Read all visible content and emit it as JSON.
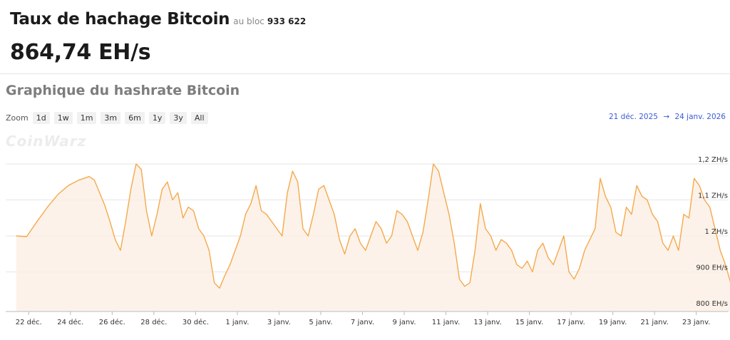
{
  "header": {
    "title": "Taux de hachage Bitcoin",
    "block_prefix": "au bloc",
    "block_number": "933 622",
    "rate": "864,74 EH/s"
  },
  "chart_title": "Graphique du hashrate Bitcoin",
  "zoom": {
    "label": "Zoom",
    "buttons": [
      "1d",
      "1w",
      "1m",
      "3m",
      "6m",
      "1y",
      "3y",
      "All"
    ]
  },
  "range": {
    "from": "21 déc. 2025",
    "arrow": "→",
    "to": "24 janv. 2026"
  },
  "watermark": "CoinWarz",
  "colors": {
    "line": "#f5a94c",
    "area": "#fbefe3",
    "range_text": "#3b5bd6"
  },
  "chart_data": {
    "type": "area",
    "y_unit": "EH/s",
    "ylim": [
      800,
      1200
    ],
    "y_ticks": [
      800,
      900,
      1000,
      1100,
      1200
    ],
    "y_tick_labels": [
      "800 EH/s",
      "900 EH/s",
      "1 ZH/s",
      "1,1 ZH/s",
      "1,2 ZH/s"
    ],
    "x_tick_labels": [
      "22 déc.",
      "24 déc.",
      "26 déc.",
      "28 déc.",
      "30 déc.",
      "1 janv.",
      "3 janv.",
      "5 janv.",
      "7 janv.",
      "9 janv.",
      "11 janv.",
      "13 janv.",
      "15 janv.",
      "17 janv.",
      "19 janv.",
      "21 janv.",
      "23 janv."
    ],
    "x_start": "2025-12-21",
    "x_end": "2026-01-24",
    "series": [
      {
        "x": [
          "2025-12-21 12:00",
          "2025-12-22 00:00",
          "2025-12-22 12:00",
          "2025-12-23 00:00",
          "2025-12-23 12:00",
          "2025-12-24 00:00",
          "2025-12-24 12:00",
          "2025-12-25 00:00",
          "2025-12-25 06:00",
          "2025-12-25 12:00",
          "2025-12-25 18:00",
          "2025-12-26 00:00",
          "2025-12-26 06:00",
          "2025-12-26 12:00",
          "2025-12-26 18:00",
          "2025-12-27 00:00",
          "2025-12-27 06:00",
          "2025-12-27 12:00",
          "2025-12-27 18:00",
          "2025-12-28 00:00",
          "2025-12-28 06:00",
          "2025-12-28 12:00",
          "2025-12-28 18:00",
          "2025-12-29 00:00",
          "2025-12-29 06:00",
          "2025-12-29 12:00",
          "2025-12-29 18:00",
          "2025-12-30 00:00",
          "2025-12-30 06:00",
          "2025-12-30 12:00",
          "2025-12-30 18:00",
          "2025-12-31 00:00",
          "2025-12-31 06:00",
          "2025-12-31 12:00",
          "2025-12-31 18:00",
          "2026-01-01 00:00",
          "2026-01-01 06:00",
          "2026-01-01 12:00",
          "2026-01-01 18:00",
          "2026-01-02 00:00",
          "2026-01-02 06:00",
          "2026-01-02 12:00",
          "2026-01-02 18:00",
          "2026-01-03 00:00",
          "2026-01-03 06:00",
          "2026-01-03 12:00",
          "2026-01-03 18:00",
          "2026-01-04 00:00",
          "2026-01-04 06:00",
          "2026-01-04 12:00",
          "2026-01-04 18:00",
          "2026-01-05 00:00",
          "2026-01-05 06:00",
          "2026-01-05 12:00",
          "2026-01-05 18:00",
          "2026-01-06 00:00",
          "2026-01-06 06:00",
          "2026-01-06 12:00",
          "2026-01-06 18:00",
          "2026-01-07 00:00",
          "2026-01-07 06:00",
          "2026-01-07 12:00",
          "2026-01-07 18:00",
          "2026-01-08 00:00",
          "2026-01-08 06:00",
          "2026-01-08 12:00",
          "2026-01-08 18:00",
          "2026-01-09 00:00",
          "2026-01-09 06:00",
          "2026-01-09 12:00",
          "2026-01-09 18:00",
          "2026-01-10 00:00",
          "2026-01-10 06:00",
          "2026-01-10 12:00",
          "2026-01-10 18:00",
          "2026-01-11 00:00",
          "2026-01-11 06:00",
          "2026-01-11 12:00",
          "2026-01-11 18:00",
          "2026-01-12 00:00",
          "2026-01-12 06:00",
          "2026-01-12 12:00",
          "2026-01-12 18:00",
          "2026-01-13 00:00",
          "2026-01-13 06:00",
          "2026-01-13 12:00",
          "2026-01-13 18:00",
          "2026-01-14 00:00",
          "2026-01-14 06:00",
          "2026-01-14 12:00",
          "2026-01-14 18:00",
          "2026-01-15 00:00",
          "2026-01-15 06:00",
          "2026-01-15 12:00",
          "2026-01-15 18:00",
          "2026-01-16 00:00",
          "2026-01-16 06:00",
          "2026-01-16 12:00",
          "2026-01-16 18:00",
          "2026-01-17 00:00",
          "2026-01-17 06:00",
          "2026-01-17 12:00",
          "2026-01-17 18:00",
          "2026-01-18 00:00",
          "2026-01-18 06:00",
          "2026-01-18 12:00",
          "2026-01-18 18:00",
          "2026-01-19 00:00",
          "2026-01-19 06:00",
          "2026-01-19 12:00",
          "2026-01-19 18:00",
          "2026-01-20 00:00",
          "2026-01-20 06:00",
          "2026-01-20 12:00",
          "2026-01-20 18:00",
          "2026-01-21 00:00",
          "2026-01-21 06:00",
          "2026-01-21 12:00",
          "2026-01-21 18:00",
          "2026-01-22 00:00",
          "2026-01-22 06:00",
          "2026-01-22 12:00",
          "2026-01-22 18:00",
          "2026-01-23 00:00",
          "2026-01-23 06:00",
          "2026-01-23 12:00",
          "2026-01-23 18:00",
          "2026-01-24 00:00",
          "2026-01-24 06:00",
          "2026-01-24 12:00",
          "2026-01-24 18:00"
        ],
        "values": [
          1000,
          998,
          1040,
          1080,
          1115,
          1140,
          1155,
          1165,
          1155,
          1120,
          1085,
          1040,
          990,
          960,
          1040,
          1130,
          1200,
          1185,
          1070,
          1000,
          1060,
          1130,
          1150,
          1100,
          1120,
          1050,
          1080,
          1070,
          1020,
          1000,
          960,
          870,
          855,
          890,
          920,
          960,
          1000,
          1060,
          1090,
          1140,
          1070,
          1060,
          1040,
          1020,
          1000,
          1120,
          1180,
          1150,
          1020,
          1000,
          1060,
          1130,
          1140,
          1100,
          1060,
          990,
          950,
          1000,
          1020,
          980,
          960,
          1000,
          1040,
          1020,
          980,
          1000,
          1070,
          1060,
          1040,
          1000,
          960,
          1010,
          1100,
          1200,
          1180,
          1120,
          1060,
          980,
          880,
          860,
          870,
          960,
          1090,
          1020,
          1000,
          960,
          990,
          980,
          960,
          920,
          910,
          930,
          900,
          960,
          980,
          940,
          920,
          960,
          1000,
          900,
          880,
          910,
          960,
          990,
          1020,
          1160,
          1110,
          1080,
          1010,
          1000,
          1080,
          1060,
          1140,
          1110,
          1100,
          1060,
          1040,
          980,
          960,
          1000,
          960,
          1060,
          1050,
          1160,
          1140,
          1100,
          1080,
          1020,
          960,
          920,
          870
        ]
      }
    ],
    "grid": true,
    "legend": "none"
  }
}
